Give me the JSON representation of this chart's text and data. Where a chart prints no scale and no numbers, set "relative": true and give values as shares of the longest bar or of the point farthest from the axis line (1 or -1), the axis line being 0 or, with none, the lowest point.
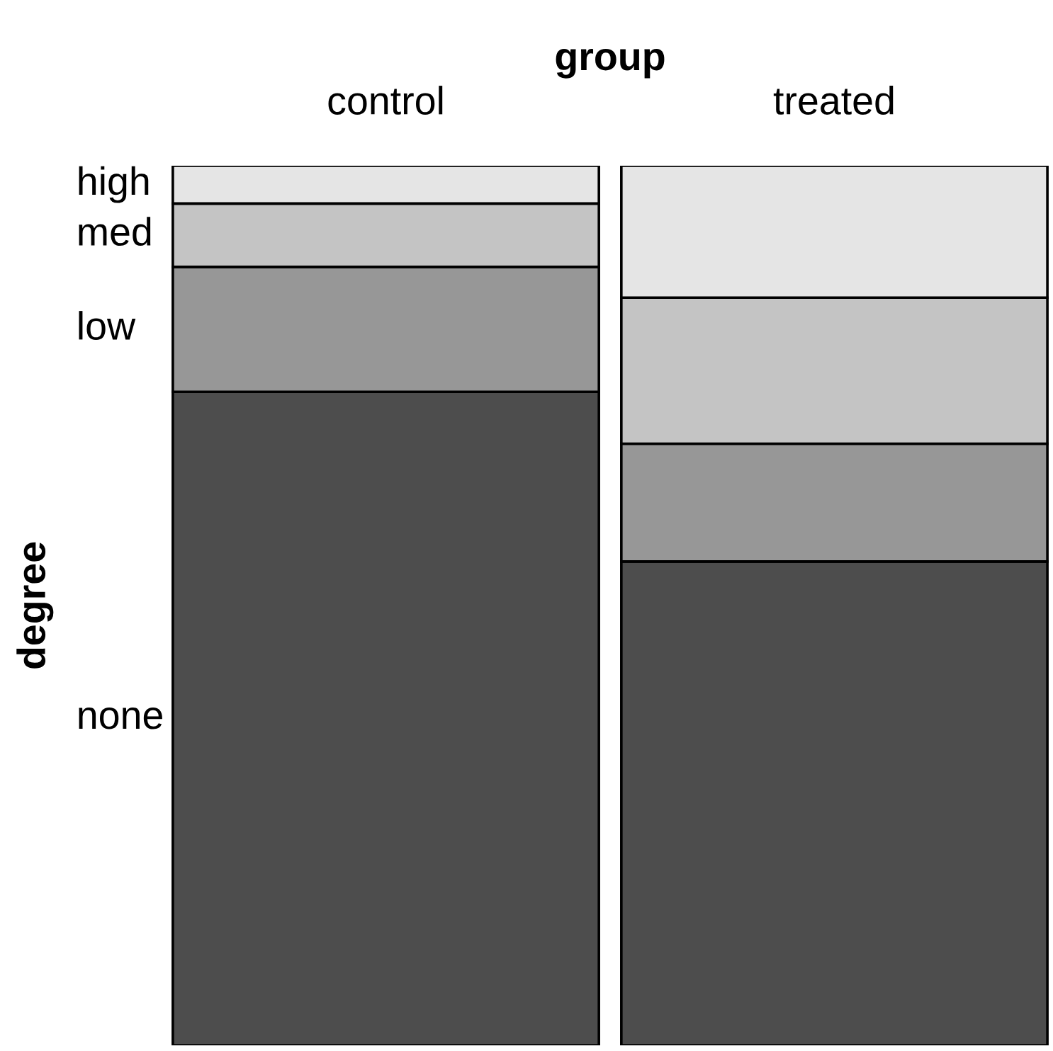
{
  "chart_data": {
    "type": "bar",
    "stacked": true,
    "relative": true,
    "xlabel": "group",
    "ylabel": "degree",
    "categories": [
      "control",
      "treated"
    ],
    "series": [
      {
        "name": "none",
        "color": "#4d4d4d",
        "values": [
          0.743,
          0.55
        ]
      },
      {
        "name": "low",
        "color": "#979797",
        "values": [
          0.142,
          0.134
        ]
      },
      {
        "name": "med",
        "color": "#c4c4c4",
        "values": [
          0.072,
          0.166
        ]
      },
      {
        "name": "high",
        "color": "#e5e5e5",
        "values": [
          0.043,
          0.15
        ]
      }
    ]
  }
}
